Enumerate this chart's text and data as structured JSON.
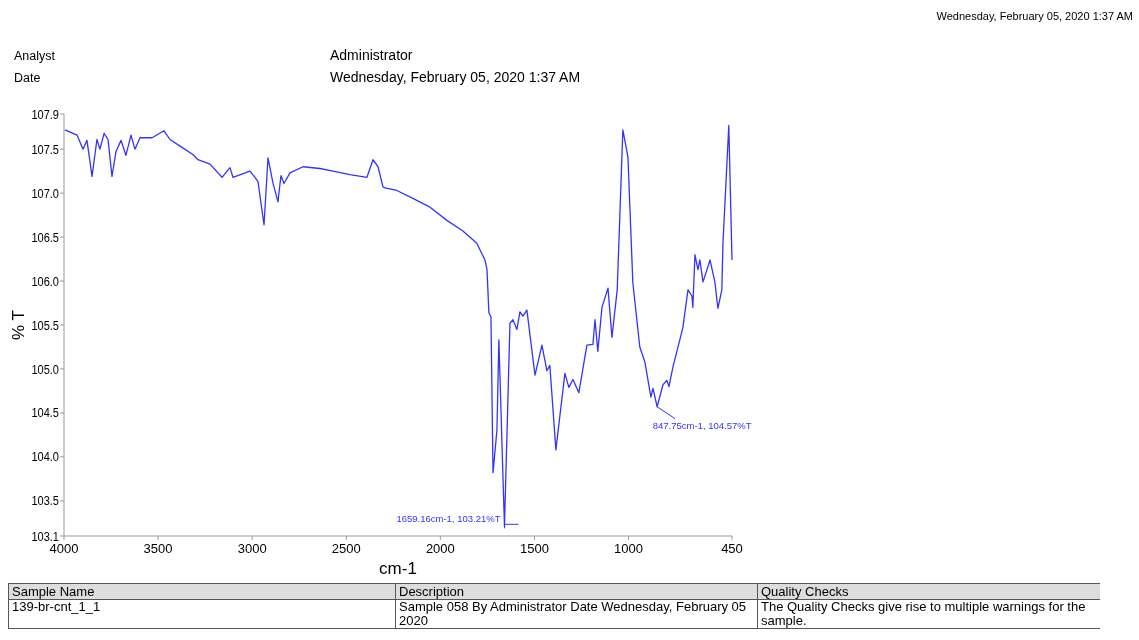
{
  "chart_data": {
    "type": "line",
    "xlabel": "cm-1",
    "ylabel": "% T",
    "x": [
      3995,
      3931,
      3899,
      3878,
      3851,
      3825,
      3809,
      3787,
      3766,
      3745,
      3724,
      3697,
      3671,
      3644,
      3623,
      3596,
      3532,
      3469,
      3437,
      3373,
      3315,
      3288,
      3224,
      3160,
      3118,
      3102,
      3012,
      2985,
      2969,
      2937,
      2916,
      2889,
      2863,
      2847,
      2831,
      2799,
      2730,
      2640,
      2571,
      2480,
      2390,
      2358,
      2331,
      2305,
      2294,
      2231,
      2146,
      2055,
      1965,
      1880,
      1806,
      1763,
      1752,
      1742,
      1731,
      1720,
      1699,
      1689,
      1659.16,
      1630,
      1614,
      1593,
      1577,
      1561,
      1540,
      1497,
      1460,
      1434,
      1418,
      1386,
      1338,
      1317,
      1295,
      1264,
      1221,
      1189,
      1178,
      1163,
      1141,
      1109,
      1088,
      1060,
      1030,
      1003,
      977,
      940,
      913,
      881,
      870,
      847.75,
      817,
      796,
      785,
      764,
      711,
      684,
      663,
      658,
      647,
      631,
      621,
      604,
      583,
      567,
      541,
      525,
      504,
      498,
      467,
      450
    ],
    "series": [
      {
        "color": "#3333ff",
        "values": [
          107.72,
          107.66,
          107.5,
          107.6,
          107.19,
          107.61,
          107.5,
          107.68,
          107.61,
          107.19,
          107.47,
          107.6,
          107.43,
          107.66,
          107.5,
          107.63,
          107.63,
          107.71,
          107.61,
          107.52,
          107.44,
          107.38,
          107.33,
          107.18,
          107.29,
          107.18,
          107.25,
          107.18,
          107.13,
          106.64,
          107.4,
          107.11,
          106.9,
          107.2,
          107.11,
          107.23,
          107.3,
          107.28,
          107.25,
          107.21,
          107.18,
          107.38,
          107.3,
          107.07,
          107.06,
          107.03,
          106.94,
          106.84,
          106.69,
          106.57,
          106.43,
          106.24,
          106.13,
          105.64,
          105.59,
          103.82,
          104.31,
          105.33,
          103.21,
          105.52,
          105.56,
          105.45,
          105.65,
          105.6,
          105.67,
          104.93,
          105.27,
          104.98,
          105.04,
          104.08,
          104.95,
          104.79,
          104.88,
          104.73,
          105.27,
          105.28,
          105.56,
          105.2,
          105.7,
          105.92,
          105.36,
          105.9,
          107.72,
          107.41,
          105.98,
          105.25,
          105.08,
          104.68,
          104.78,
          104.57,
          104.82,
          104.87,
          104.8,
          105.02,
          105.47,
          105.9,
          105.83,
          105.7,
          106.3,
          106.13,
          106.24,
          105.99,
          106.13,
          106.24,
          105.99,
          105.69,
          105.9,
          106.43,
          107.77,
          106.24
        ]
      }
    ],
    "xlim": [
      4000,
      450
    ],
    "xticks": [
      4000,
      3500,
      3000,
      2500,
      2000,
      1500,
      1000,
      450
    ],
    "ylim": [
      103.1,
      107.9
    ],
    "yticks": [
      103.1,
      103.5,
      {
        "value": 104,
        "label": "104.0"
      },
      104.5,
      {
        "value": 105,
        "label": "105.0"
      },
      105.5,
      {
        "value": 106,
        "label": "106.0"
      },
      106.5,
      {
        "value": 107,
        "label": "107.0"
      },
      107.5,
      107.9
    ],
    "grid": false,
    "marker": "none",
    "line_style": "solid",
    "annotations": [
      "Wednesday, February 05, 2020 1:37 AM",
      "Analyst",
      "Administrator",
      "Date",
      "Wednesday, February 05, 2020 1:37 AM",
      "Sample Name",
      "Description",
      "Quality Checks",
      "139-br-cnt_1_1",
      "Sample 058 By Administrator Date Wednesday, February 05 2020",
      "The Quality Checks give rise to multiple warnings for the sample.",
      {
        "text": "1659.16cm-1, 103.21%T",
        "x": 1659.16,
        "y": 103.21
      },
      {
        "text": "847.75cm-1, 104.57%T",
        "x": 847.75,
        "y": 104.57
      }
    ]
  }
}
